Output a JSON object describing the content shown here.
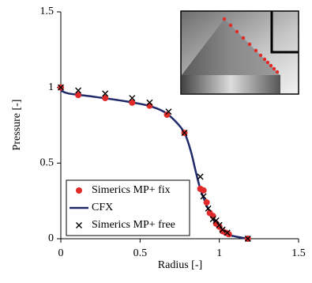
{
  "chart_data": {
    "type": "scatter",
    "x_label": "Radius [-]",
    "y_label": "Pressure [-]",
    "xlim": [
      0,
      1.5
    ],
    "xticks": [
      0,
      0.5,
      1,
      1.5
    ],
    "ylim": [
      0,
      1.5
    ],
    "yticks": [
      0,
      0.5,
      1,
      1.5
    ],
    "grid": false,
    "legend": "lower left",
    "series": [
      {
        "name": "Simerics MP+ fix",
        "color": "#e12a2a",
        "style": "circle",
        "x": [
          0,
          0.11,
          0.28,
          0.45,
          0.56,
          0.67,
          0.78,
          0.88,
          0.9,
          0.92,
          0.94,
          0.96,
          0.98,
          1.0,
          1.02,
          1.04,
          1.06,
          1.18
        ],
        "values": [
          1.0,
          0.95,
          0.93,
          0.9,
          0.88,
          0.82,
          0.7,
          0.33,
          0.32,
          0.24,
          0.17,
          0.15,
          0.1,
          0.08,
          0.05,
          0.04,
          0.03,
          0.0
        ]
      },
      {
        "name": "CFX",
        "color": "#1f2a6b",
        "style": "line",
        "x": [
          0,
          0.05,
          0.2,
          0.4,
          0.55,
          0.65,
          0.72,
          0.78,
          0.82,
          0.85,
          0.88,
          0.92,
          0.96,
          1.0,
          1.05,
          1.1,
          1.18
        ],
        "values": [
          0.98,
          0.96,
          0.94,
          0.91,
          0.88,
          0.84,
          0.78,
          0.7,
          0.58,
          0.45,
          0.33,
          0.22,
          0.13,
          0.07,
          0.03,
          0.015,
          0.0
        ]
      },
      {
        "name": "Simerics MP+ free",
        "color": "#000000",
        "style": "cross",
        "x": [
          0,
          0.11,
          0.28,
          0.45,
          0.56,
          0.68,
          0.78,
          0.88,
          0.9,
          0.93,
          0.96,
          0.98,
          1.0,
          1.02,
          1.05,
          1.18
        ],
        "values": [
          1.0,
          0.98,
          0.96,
          0.93,
          0.9,
          0.84,
          0.7,
          0.41,
          0.28,
          0.2,
          0.13,
          0.12,
          0.09,
          0.06,
          0.04,
          0.0
        ]
      }
    ]
  }
}
